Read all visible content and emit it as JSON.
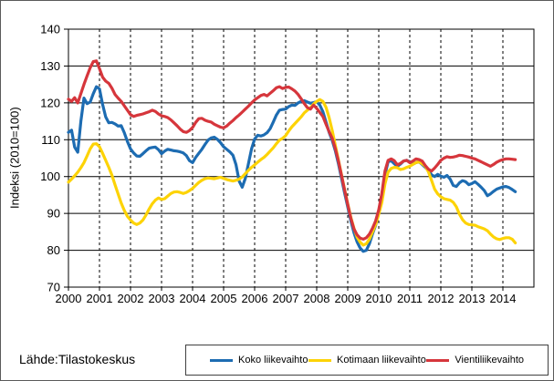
{
  "figure": {
    "source_text": "Lähde:Tilastokeskus",
    "background_color": "#ffffff",
    "axis_color": "#000000"
  },
  "chart_data": {
    "type": "line",
    "title": "",
    "xlabel": "",
    "ylabel": "Indeksi (2010=100)",
    "xlim": [
      2000,
      2015
    ],
    "ylim": [
      70,
      140
    ],
    "y_ticks": [
      70,
      80,
      90,
      100,
      110,
      120,
      130,
      140
    ],
    "x_ticks": [
      2000,
      2001,
      2002,
      2003,
      2004,
      2005,
      2006,
      2007,
      2008,
      2009,
      2010,
      2011,
      2012,
      2013,
      2014
    ],
    "grid": {
      "horizontal": "solid",
      "vertical": "dashed"
    },
    "legend_position": "bottom-right",
    "x_start": 2000.0,
    "x_step": 0.1,
    "series": [
      {
        "name": "Koko liikevaihto",
        "color": "#1d6cb2",
        "values": [
          112.0,
          112.6,
          108.0,
          106.6,
          115.0,
          121.3,
          119.8,
          120.2,
          122.5,
          124.4,
          123.8,
          119.6,
          116.2,
          114.6,
          114.7,
          114.3,
          113.7,
          113.8,
          111.9,
          109.5,
          107.5,
          106.4,
          105.6,
          105.5,
          106.2,
          107.0,
          107.7,
          107.9,
          108.0,
          107.3,
          106.2,
          106.9,
          107.4,
          107.2,
          107.0,
          106.9,
          106.7,
          106.4,
          105.7,
          104.3,
          103.8,
          105.2,
          106.3,
          107.4,
          108.7,
          109.9,
          110.5,
          110.7,
          110.1,
          109.2,
          108.1,
          107.4,
          106.7,
          105.8,
          103.2,
          98.8,
          97.1,
          99.5,
          103.5,
          107.5,
          110.2,
          111.2,
          111.0,
          111.3,
          111.9,
          113.0,
          114.8,
          116.7,
          118.0,
          118.2,
          118.3,
          119.0,
          119.4,
          119.3,
          120.0,
          120.4,
          120.6,
          120.2,
          119.9,
          120.1,
          120.3,
          119.4,
          117.6,
          114.8,
          112.0,
          109.8,
          107.0,
          103.5,
          99.5,
          95.5,
          91.8,
          88.0,
          84.8,
          82.3,
          80.6,
          79.7,
          80.0,
          81.8,
          84.5,
          86.8,
          90.3,
          94.8,
          100.5,
          104.0,
          104.3,
          103.5,
          102.8,
          103.4,
          104.2,
          104.4,
          104.0,
          103.4,
          103.8,
          104.0,
          103.3,
          102.5,
          101.6,
          100.5,
          100.0,
          100.6,
          100.1,
          99.8,
          100.3,
          99.3,
          97.6,
          97.3,
          98.3,
          98.9,
          98.6,
          97.8,
          98.1,
          98.6,
          97.9,
          97.1,
          96.2,
          94.8,
          95.3,
          96.0,
          96.6,
          96.9,
          97.2,
          97.3,
          97.0,
          96.5,
          95.9
        ]
      },
      {
        "name": "Kotimaan liikevaihto",
        "color": "#fdd306",
        "values": [
          98.5,
          99.3,
          100.2,
          101.2,
          102.4,
          103.8,
          105.6,
          107.5,
          108.8,
          108.9,
          108.1,
          106.3,
          104.4,
          102.5,
          100.4,
          97.8,
          95.3,
          92.8,
          90.8,
          89.2,
          88.2,
          87.4,
          87.0,
          87.4,
          88.2,
          89.6,
          91.2,
          92.6,
          93.6,
          94.2,
          93.8,
          94.0,
          94.7,
          95.4,
          95.8,
          95.9,
          95.7,
          95.4,
          95.7,
          96.2,
          96.8,
          97.6,
          98.4,
          99.0,
          99.4,
          99.6,
          99.5,
          99.4,
          99.6,
          99.8,
          99.5,
          99.2,
          99.0,
          98.8,
          99.0,
          99.3,
          99.9,
          100.8,
          101.7,
          102.5,
          103.2,
          103.9,
          104.6,
          105.2,
          106.0,
          106.9,
          107.8,
          108.9,
          109.9,
          110.4,
          111.1,
          112.4,
          113.5,
          114.4,
          115.3,
          116.2,
          117.3,
          118.0,
          118.7,
          119.7,
          120.4,
          120.9,
          120.4,
          118.8,
          116.0,
          112.5,
          108.5,
          104.5,
          100.5,
          96.5,
          92.6,
          89.0,
          86.0,
          83.6,
          82.2,
          81.4,
          81.8,
          83.0,
          85.0,
          87.0,
          89.8,
          93.0,
          98.0,
          101.2,
          102.2,
          102.5,
          102.4,
          101.9,
          102.1,
          102.5,
          102.8,
          103.3,
          103.8,
          104.0,
          103.5,
          102.8,
          101.3,
          99.0,
          96.6,
          95.3,
          94.5,
          94.0,
          93.8,
          93.6,
          93.0,
          91.8,
          89.8,
          88.3,
          87.4,
          87.0,
          86.9,
          86.8,
          86.4,
          86.1,
          85.8,
          85.3,
          84.4,
          83.6,
          83.1,
          82.9,
          83.2,
          83.4,
          83.4,
          83.0,
          82.0
        ]
      },
      {
        "name": "Vientiliikevaihto",
        "color": "#d6363c",
        "values": [
          121.0,
          120.4,
          121.4,
          120.0,
          122.5,
          125.0,
          127.3,
          129.5,
          131.2,
          131.4,
          129.3,
          127.0,
          125.9,
          125.3,
          124.0,
          122.3,
          121.3,
          120.4,
          119.2,
          118.0,
          116.8,
          116.3,
          116.6,
          116.8,
          117.0,
          117.3,
          117.6,
          118.0,
          117.7,
          117.0,
          116.5,
          116.3,
          116.0,
          115.4,
          114.6,
          113.8,
          112.9,
          112.2,
          112.0,
          112.5,
          113.3,
          114.7,
          115.7,
          115.8,
          115.3,
          115.0,
          114.8,
          114.2,
          113.8,
          113.4,
          113.2,
          113.7,
          114.5,
          115.2,
          116.0,
          116.7,
          117.5,
          118.3,
          119.1,
          120.0,
          120.8,
          121.4,
          122.0,
          122.3,
          121.9,
          122.6,
          123.3,
          124.1,
          124.4,
          123.9,
          124.2,
          124.3,
          123.8,
          123.2,
          122.3,
          121.1,
          119.8,
          118.7,
          118.3,
          119.4,
          118.5,
          117.4,
          116.3,
          114.2,
          112.2,
          110.4,
          107.6,
          104.2,
          100.3,
          96.3,
          92.4,
          88.7,
          85.8,
          84.2,
          83.3,
          83.0,
          83.4,
          84.4,
          86.0,
          88.0,
          91.0,
          95.5,
          101.5,
          104.4,
          104.8,
          104.3,
          103.2,
          103.6,
          104.2,
          104.4,
          103.8,
          104.2,
          104.8,
          104.6,
          104.2,
          103.0,
          102.0,
          101.5,
          102.3,
          103.3,
          104.4,
          105.0,
          105.4,
          105.2,
          105.3,
          105.5,
          105.8,
          105.7,
          105.5,
          105.3,
          105.0,
          104.8,
          104.4,
          104.0,
          103.6,
          103.2,
          102.8,
          103.3,
          103.9,
          104.3,
          104.6,
          104.8,
          104.8,
          104.7,
          104.6
        ]
      }
    ]
  }
}
